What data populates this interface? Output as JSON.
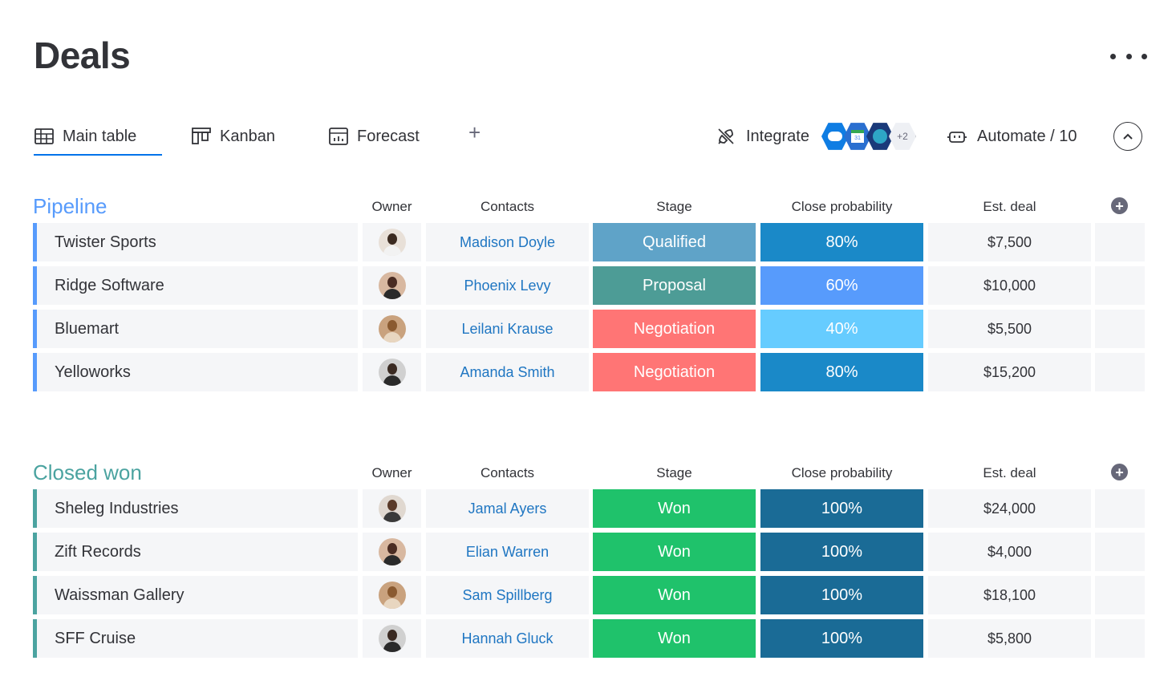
{
  "page": {
    "title": "Deals"
  },
  "tabs": [
    {
      "label": "Main table",
      "icon": "table-icon",
      "active": true
    },
    {
      "label": "Kanban",
      "icon": "kanban-icon",
      "active": false
    },
    {
      "label": "Forecast",
      "icon": "forecast-icon",
      "active": false
    }
  ],
  "toolbar": {
    "add_tab": "+",
    "integrate_label": "Integrate",
    "integrations_more": "+2",
    "automate_label": "Automate / 10"
  },
  "columns": {
    "owner": "Owner",
    "contacts": "Contacts",
    "stage": "Stage",
    "close_probability": "Close probability",
    "est_deal": "Est. deal"
  },
  "groups": [
    {
      "title": "Pipeline",
      "color": "#579bfc",
      "rows": [
        {
          "name": "Twister Sports",
          "owner": "owner-1",
          "contact": "Madison Doyle",
          "stage": "Qualified",
          "stage_color": "#5fa3c8",
          "probability": "80%",
          "probability_color": "#1a89c8",
          "deal": "$7,500"
        },
        {
          "name": "Ridge Software",
          "owner": "owner-2",
          "contact": "Phoenix Levy",
          "stage": "Proposal",
          "stage_color": "#4d9c96",
          "probability": "60%",
          "probability_color": "#579bfc",
          "deal": "$10,000"
        },
        {
          "name": "Bluemart",
          "owner": "owner-3",
          "contact": "Leilani Krause",
          "stage": "Negotiation",
          "stage_color": "#ff7575",
          "probability": "40%",
          "probability_color": "#66ccff",
          "deal": "$5,500"
        },
        {
          "name": "Yelloworks",
          "owner": "owner-4",
          "contact": "Amanda Smith",
          "stage": "Negotiation",
          "stage_color": "#ff7575",
          "probability": "80%",
          "probability_color": "#1a89c8",
          "deal": "$15,200"
        }
      ]
    },
    {
      "title": "Closed won",
      "color": "#4ba3a0",
      "rows": [
        {
          "name": "Sheleg Industries",
          "owner": "owner-5",
          "contact": "Jamal Ayers",
          "stage": "Won",
          "stage_color": "#1fc26b",
          "probability": "100%",
          "probability_color": "#1a6b96",
          "deal": "$24,000"
        },
        {
          "name": "Zift Records",
          "owner": "owner-2",
          "contact": "Elian Warren",
          "stage": "Won",
          "stage_color": "#1fc26b",
          "probability": "100%",
          "probability_color": "#1a6b96",
          "deal": "$4,000"
        },
        {
          "name": "Waissman Gallery",
          "owner": "owner-3",
          "contact": "Sam Spillberg",
          "stage": "Won",
          "stage_color": "#1fc26b",
          "probability": "100%",
          "probability_color": "#1a6b96",
          "deal": "$18,100"
        },
        {
          "name": "SFF Cruise",
          "owner": "owner-4",
          "contact": "Hannah Gluck",
          "stage": "Won",
          "stage_color": "#1fc26b",
          "probability": "100%",
          "probability_color": "#1a6b96",
          "deal": "$5,800"
        }
      ]
    }
  ]
}
